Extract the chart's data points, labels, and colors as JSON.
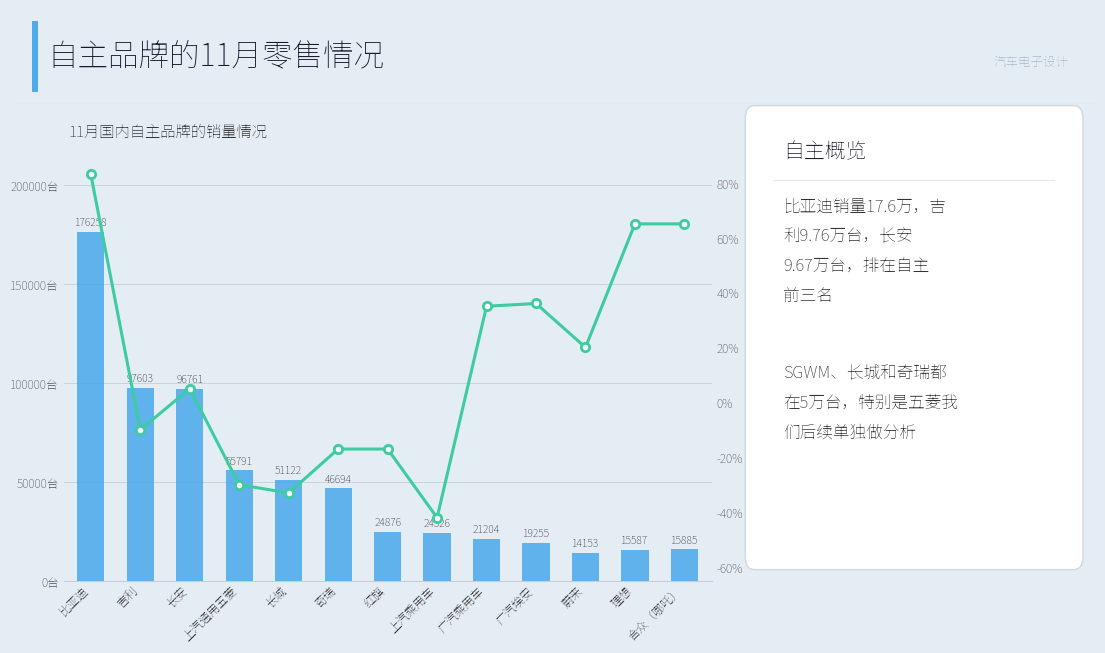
{
  "title": "自主品牌的11月零售情况",
  "chart_subtitle": "11月国内自主品牌的销量情况",
  "categories": [
    "比亚迪",
    "吉利",
    "长安",
    "上汽通用五菱",
    "长城",
    "奇瑞",
    "红旗",
    "上汽乘用车",
    "广汽乘用车",
    "广汽埃安",
    "蔚来",
    "理想",
    "合众（哪吒）"
  ],
  "bar_values": [
    176258,
    97603,
    96761,
    55791,
    51122,
    46694,
    24876,
    24326,
    21204,
    19255,
    14153,
    15587,
    15885
  ],
  "bar_color": "#4DAAEB",
  "line_values": [
    83,
    -10,
    5,
    -30,
    -33,
    -17,
    -17,
    -42,
    35,
    36,
    20,
    65,
    65
  ],
  "line_color": "#3DCCA0",
  "background_color": "#E4ECF4",
  "chart_bg_color": "#E4ECF4",
  "left_ylim": [
    0,
    215000
  ],
  "left_yticks": [
    0,
    50000,
    100000,
    150000,
    200000
  ],
  "left_yticklabels": [
    "0台",
    "50000台",
    "100000台",
    "150000台",
    "200000台"
  ],
  "right_ylim": [
    -65,
    90
  ],
  "right_yticks": [
    -60,
    -40,
    -20,
    0,
    20,
    40,
    60,
    80
  ],
  "right_yticklabels": [
    "-60%",
    "-40%",
    "-20%",
    "0%",
    "20%",
    "40%",
    "60%",
    "80%"
  ],
  "title_fontsize": 22,
  "subtitle_fontsize": 11,
  "tick_fontsize": 8.5,
  "value_label_fontsize": 7.5,
  "panel_title": "自主概览",
  "panel_text1": "比亚迪销量17.6万，吉\n利9.76万台，长安\n9.67万台，排在自主\n前三名",
  "panel_text2": "SGWM、长城和奇瑞都\n在5万台，特别是五菱我\n们后续单独做分析",
  "panel_bg": "#FFFFFF",
  "panel_title_fontsize": 15,
  "panel_text_fontsize": 12,
  "title_bar_color": "#4DAAEB",
  "header_bg": "#FFFFFF"
}
